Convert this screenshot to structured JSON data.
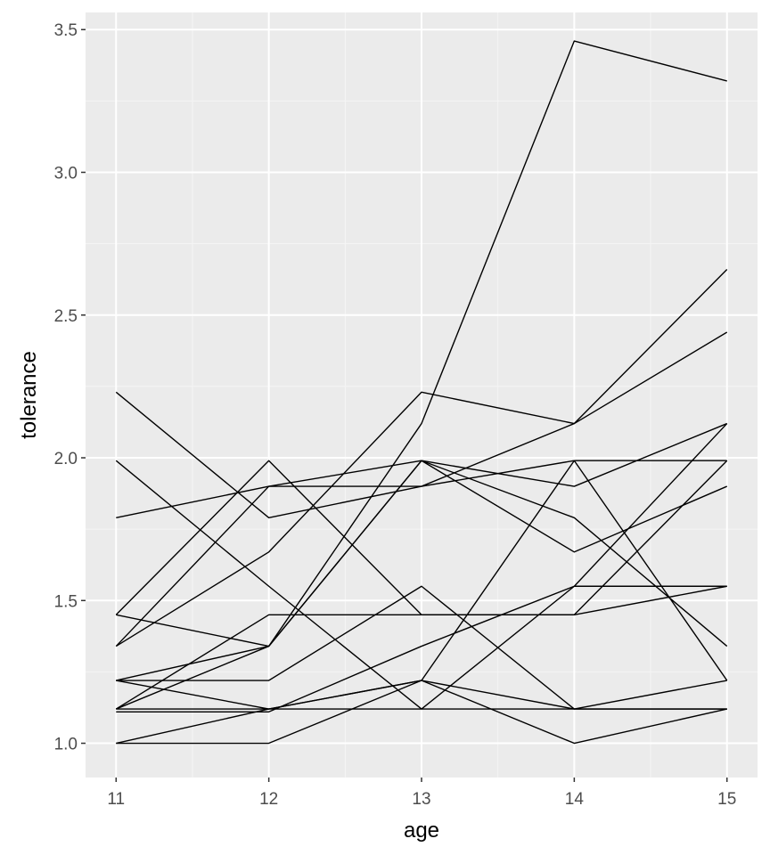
{
  "chart_data": {
    "type": "line",
    "title": "",
    "xlabel": "age",
    "ylabel": "tolerance",
    "x": [
      11,
      12,
      13,
      14,
      15
    ],
    "xlim": [
      10.8,
      15.2
    ],
    "ylim": [
      0.88,
      3.56
    ],
    "x_ticks": [
      11,
      12,
      13,
      14,
      15
    ],
    "x_tick_labels": [
      "11",
      "12",
      "13",
      "14",
      "15"
    ],
    "y_ticks": [
      1.0,
      1.5,
      2.0,
      2.5,
      3.0,
      3.5
    ],
    "y_tick_labels": [
      "1.0",
      "1.5",
      "2.0",
      "2.5",
      "3.0",
      "3.5"
    ],
    "grid": true,
    "legend": "none",
    "colors": {
      "panel": "#ebebeb",
      "grid_major": "#ffffff",
      "grid_minor": "#f5f5f5",
      "line": "#000000",
      "tick_label": "#4d4d4d"
    },
    "series": [
      {
        "values": [
          2.23,
          1.79,
          1.9,
          2.12,
          2.66
        ]
      },
      {
        "values": [
          1.12,
          1.45,
          1.45,
          1.45,
          1.99
        ]
      },
      {
        "values": [
          1.45,
          1.34,
          1.99,
          1.79,
          1.34
        ]
      },
      {
        "values": [
          1.22,
          1.22,
          1.55,
          1.12,
          1.12
        ]
      },
      {
        "values": [
          1.45,
          1.99,
          1.45,
          1.45,
          1.55
        ]
      },
      {
        "values": [
          1.34,
          1.67,
          2.23,
          2.12,
          2.44
        ]
      },
      {
        "values": [
          1.79,
          1.9,
          1.9,
          1.99,
          1.99
        ]
      },
      {
        "values": [
          1.12,
          1.12,
          1.22,
          1.12,
          1.22
        ]
      },
      {
        "values": [
          1.22,
          1.34,
          2.12,
          3.46,
          3.32
        ]
      },
      {
        "values": [
          1.0,
          1.12,
          1.22,
          1.99,
          1.22
        ]
      },
      {
        "values": [
          1.99,
          1.55,
          1.12,
          1.12,
          1.12
        ]
      },
      {
        "values": [
          1.22,
          1.12,
          1.12,
          1.55,
          1.55
        ]
      },
      {
        "values": [
          1.34,
          1.9,
          1.99,
          1.9,
          2.12
        ]
      },
      {
        "values": [
          1.11,
          1.11,
          1.34,
          1.55,
          2.12
        ]
      },
      {
        "values": [
          1.0,
          1.0,
          1.22,
          1.0,
          1.12
        ]
      },
      {
        "values": [
          1.12,
          1.34,
          1.99,
          1.67,
          1.9
        ]
      }
    ]
  }
}
